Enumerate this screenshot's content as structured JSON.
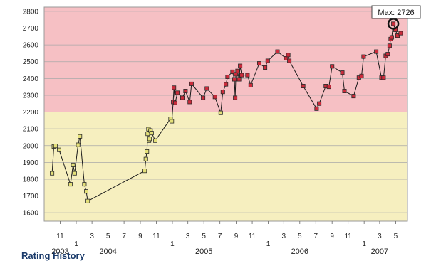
{
  "chart_data": {
    "type": "line",
    "title": "",
    "xlabel": "",
    "ylabel": "",
    "ylim": [
      1550,
      2825
    ],
    "yticks": [
      1600,
      1700,
      1800,
      1900,
      2000,
      2100,
      2200,
      2300,
      2400,
      2500,
      2600,
      2700,
      2800
    ],
    "xlim": [
      "2003-09-01",
      "2007-06-15"
    ],
    "xticks": [
      {
        "date": "2003-11-01",
        "label": "11"
      },
      {
        "date": "2004-01-01",
        "label": "1"
      },
      {
        "date": "2004-03-01",
        "label": "3"
      },
      {
        "date": "2004-05-01",
        "label": "5"
      },
      {
        "date": "2004-07-01",
        "label": "7"
      },
      {
        "date": "2004-09-01",
        "label": "9"
      },
      {
        "date": "2004-11-01",
        "label": "11"
      },
      {
        "date": "2005-01-01",
        "label": "1"
      },
      {
        "date": "2005-03-01",
        "label": "3"
      },
      {
        "date": "2005-05-01",
        "label": "5"
      },
      {
        "date": "2005-07-01",
        "label": "7"
      },
      {
        "date": "2005-09-01",
        "label": "9"
      },
      {
        "date": "2005-11-01",
        "label": "11"
      },
      {
        "date": "2006-01-01",
        "label": "1"
      },
      {
        "date": "2006-03-01",
        "label": "3"
      },
      {
        "date": "2006-05-01",
        "label": "5"
      },
      {
        "date": "2006-07-01",
        "label": "7"
      },
      {
        "date": "2006-09-01",
        "label": "9"
      },
      {
        "date": "2006-11-01",
        "label": "11"
      },
      {
        "date": "2007-01-01",
        "label": "1"
      },
      {
        "date": "2007-03-01",
        "label": "3"
      },
      {
        "date": "2007-05-01",
        "label": "5"
      }
    ],
    "year_labels": [
      {
        "date": "2003-11-01",
        "label": "2003"
      },
      {
        "date": "2004-05-01",
        "label": "2004"
      },
      {
        "date": "2005-05-01",
        "label": "2005"
      },
      {
        "date": "2006-05-01",
        "label": "2006"
      },
      {
        "date": "2007-03-01",
        "label": "2007"
      }
    ],
    "bands": [
      {
        "from": 1550,
        "to": 2200,
        "color": "#f6efbf"
      },
      {
        "from": 2200,
        "to": 2825,
        "color": "#f6c0c4"
      }
    ],
    "threshold": 2200,
    "marker_colors": {
      "low": "#e4e07a",
      "high": "#cc2b3b"
    },
    "grid": true,
    "legend": "none",
    "series": [
      {
        "points": [
          [
            "2003-10-01",
            1835
          ],
          [
            "2003-10-08",
            1995
          ],
          [
            "2003-10-14",
            1998
          ],
          [
            "2003-10-28",
            1975
          ],
          [
            "2003-12-10",
            1770
          ],
          [
            "2003-12-20",
            1885
          ],
          [
            "2003-12-26",
            1835
          ],
          [
            "2004-01-08",
            2005
          ],
          [
            "2004-01-15",
            2055
          ],
          [
            "2004-02-01",
            1770
          ],
          [
            "2004-02-08",
            1727
          ],
          [
            "2004-02-14",
            1670
          ],
          [
            "2004-09-18",
            1850
          ],
          [
            "2004-09-22",
            1920
          ],
          [
            "2004-09-26",
            1965
          ],
          [
            "2004-09-29",
            2070
          ],
          [
            "2004-10-02",
            2098
          ],
          [
            "2004-10-04",
            2030
          ],
          [
            "2004-10-06",
            2040
          ],
          [
            "2004-10-10",
            2090
          ],
          [
            "2004-10-14",
            2075
          ],
          [
            "2004-10-28",
            2030
          ],
          [
            "2004-12-25",
            2160
          ],
          [
            "2004-12-30",
            2145
          ],
          [
            "2005-01-04",
            2260
          ],
          [
            "2005-01-07",
            2345
          ],
          [
            "2005-01-12",
            2255
          ],
          [
            "2005-01-20",
            2315
          ],
          [
            "2005-02-08",
            2285
          ],
          [
            "2005-02-20",
            2325
          ],
          [
            "2005-03-08",
            2260
          ],
          [
            "2005-03-15",
            2368
          ],
          [
            "2005-04-28",
            2285
          ],
          [
            "2005-05-12",
            2340
          ],
          [
            "2005-06-12",
            2290
          ],
          [
            "2005-07-04",
            2195
          ],
          [
            "2005-07-12",
            2320
          ],
          [
            "2005-07-24",
            2365
          ],
          [
            "2005-07-30",
            2410
          ],
          [
            "2005-08-18",
            2440
          ],
          [
            "2005-08-25",
            2395
          ],
          [
            "2005-08-28",
            2285
          ],
          [
            "2005-08-31",
            2425
          ],
          [
            "2005-09-06",
            2445
          ],
          [
            "2005-09-12",
            2395
          ],
          [
            "2005-09-16",
            2475
          ],
          [
            "2005-09-22",
            2420
          ],
          [
            "2005-10-14",
            2420
          ],
          [
            "2005-10-26",
            2360
          ],
          [
            "2005-11-28",
            2490
          ],
          [
            "2005-12-20",
            2465
          ],
          [
            "2005-12-30",
            2505
          ],
          [
            "2006-02-05",
            2560
          ],
          [
            "2006-03-10",
            2520
          ],
          [
            "2006-03-18",
            2540
          ],
          [
            "2006-03-22",
            2505
          ],
          [
            "2006-05-14",
            2355
          ],
          [
            "2006-07-04",
            2220
          ],
          [
            "2006-07-14",
            2250
          ],
          [
            "2006-08-08",
            2355
          ],
          [
            "2006-08-20",
            2350
          ],
          [
            "2006-09-01",
            2472
          ],
          [
            "2006-10-10",
            2435
          ],
          [
            "2006-10-18",
            2325
          ],
          [
            "2006-11-22",
            2295
          ],
          [
            "2006-12-12",
            2405
          ],
          [
            "2006-12-22",
            2415
          ],
          [
            "2006-12-30",
            2530
          ],
          [
            "2007-02-16",
            2560
          ],
          [
            "2007-03-08",
            2405
          ],
          [
            "2007-03-16",
            2405
          ],
          [
            "2007-03-24",
            2535
          ],
          [
            "2007-04-01",
            2545
          ],
          [
            "2007-04-08",
            2595
          ],
          [
            "2007-04-12",
            2635
          ],
          [
            "2007-04-16",
            2645
          ],
          [
            "2007-04-22",
            2726
          ],
          [
            "2007-04-30",
            2690
          ],
          [
            "2007-05-08",
            2655
          ],
          [
            "2007-05-20",
            2670
          ]
        ]
      }
    ],
    "max_annotation": {
      "label": "Max: 2726",
      "date": "2007-04-22",
      "value": 2726
    }
  },
  "footer_text": "Rating History"
}
